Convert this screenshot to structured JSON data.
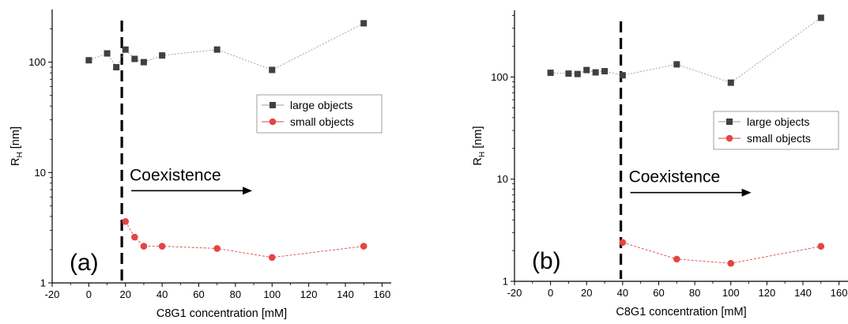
{
  "chart_data": [
    {
      "type": "scatter",
      "panel_label": "(a)",
      "annotation": "Coexistence",
      "dashed_line_x": 18,
      "xlabel": "C8G1 concentration [mM]",
      "ylabel": "R",
      "ylabel_sub": "H",
      "ylabel_unit": " [nm]",
      "xlim": [
        -20,
        165
      ],
      "ylim": [
        1,
        300
      ],
      "yscale": "log",
      "xticks": [
        -20,
        0,
        20,
        40,
        60,
        80,
        100,
        120,
        140,
        160
      ],
      "yticks": [
        {
          "value": 1,
          "label": "1"
        },
        {
          "value": 10,
          "label": "10"
        },
        {
          "value": 100,
          "label": "100"
        }
      ],
      "legend_position": "right",
      "series": [
        {
          "name": "large objects",
          "marker": "square",
          "color": "#404040",
          "line_color": "#9a9a9a",
          "x": [
            0,
            10,
            15,
            20,
            25,
            30,
            40,
            70,
            100,
            150
          ],
          "y": [
            104,
            120,
            90,
            130,
            107,
            100,
            115,
            130,
            85,
            225
          ]
        },
        {
          "name": "small objects",
          "marker": "circle",
          "color": "#e34545",
          "line_color": "#e34545",
          "x": [
            20,
            25,
            30,
            40,
            70,
            100,
            150
          ],
          "y": [
            3.6,
            2.6,
            2.15,
            2.15,
            2.05,
            1.7,
            2.15
          ]
        }
      ]
    },
    {
      "type": "scatter",
      "panel_label": "(b)",
      "annotation": "Coexistence",
      "dashed_line_x": 39,
      "xlabel": "C8G1 concentration [mM]",
      "ylabel": "R",
      "ylabel_sub": "H",
      "ylabel_unit": " [nm]",
      "xlim": [
        -20,
        165
      ],
      "ylim": [
        1,
        450
      ],
      "yscale": "log",
      "xticks": [
        -20,
        0,
        20,
        40,
        60,
        80,
        100,
        120,
        140,
        160
      ],
      "yticks": [
        {
          "value": 1,
          "label": "1"
        },
        {
          "value": 10,
          "label": "10"
        },
        {
          "value": 100,
          "label": "100"
        }
      ],
      "legend_position": "right",
      "series": [
        {
          "name": "large objects",
          "marker": "square",
          "color": "#404040",
          "line_color": "#9a9a9a",
          "x": [
            0,
            10,
            15,
            20,
            25,
            30,
            40,
            70,
            100,
            150
          ],
          "y": [
            110,
            108,
            107,
            117,
            111,
            114,
            104,
            133,
            88,
            380
          ]
        },
        {
          "name": "small objects",
          "marker": "circle",
          "color": "#e34545",
          "line_color": "#e34545",
          "x": [
            40,
            70,
            100,
            150
          ],
          "y": [
            2.4,
            1.65,
            1.5,
            2.2
          ]
        }
      ]
    }
  ]
}
